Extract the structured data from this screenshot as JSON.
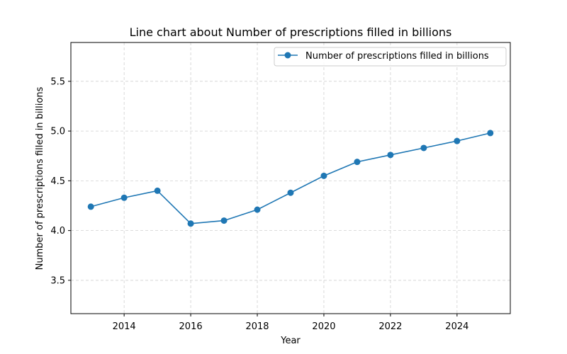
{
  "chart_data": {
    "type": "line",
    "title": "Line chart about Number of prescriptions filled in billions",
    "xlabel": "Year",
    "ylabel": "Number of prescriptions filled in billions",
    "x": [
      2013,
      2014,
      2015,
      2016,
      2017,
      2018,
      2019,
      2020,
      2021,
      2022,
      2023,
      2024,
      2025
    ],
    "series": [
      {
        "name": "Number of prescriptions filled in billions",
        "values": [
          4.24,
          4.33,
          4.4,
          4.07,
          4.1,
          4.21,
          4.38,
          4.55,
          4.69,
          4.76,
          4.83,
          4.9,
          4.98
        ],
        "color": "#1f77b4"
      }
    ],
    "xlim": [
      2012.4,
      2025.6
    ],
    "ylim": [
      3.165,
      5.89
    ],
    "xticks": [
      2014,
      2016,
      2018,
      2020,
      2022,
      2024
    ],
    "xtick_labels": [
      "2014",
      "2016",
      "2018",
      "2020",
      "2022",
      "2024"
    ],
    "yticks": [
      3.5,
      4.0,
      4.5,
      5.0,
      5.5
    ],
    "ytick_labels": [
      "3.5",
      "4.0",
      "4.5",
      "5.0",
      "5.5"
    ],
    "grid": true,
    "legend_position": "top-right"
  }
}
